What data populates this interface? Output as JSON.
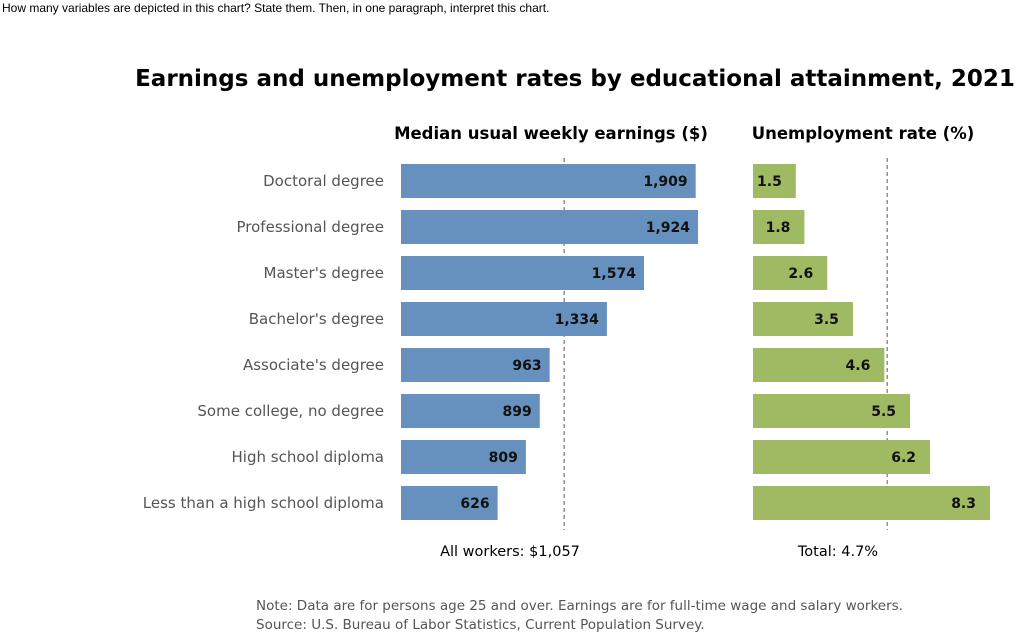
{
  "prompt_text": "How many variables are depicted in this chart? State them. Then, in one paragraph, interpret this chart.",
  "chart_data": {
    "type": "bar",
    "orientation": "horizontal",
    "title": "Earnings and unemployment rates by educational attainment, 2021",
    "categories": [
      "Doctoral degree",
      "Professional degree",
      "Master's degree",
      "Bachelor's degree",
      "Associate's degree",
      "Some college, no degree",
      "High school diploma",
      "Less than a high school diploma"
    ],
    "panels": [
      {
        "title": "Median usual weekly earnings ($)",
        "values": [
          1909,
          1924,
          1574,
          1334,
          963,
          899,
          809,
          626
        ],
        "value_labels": [
          "1,909",
          "1,924",
          "1,574",
          "1,334",
          "963",
          "899",
          "809",
          "626"
        ],
        "reference_value": 1057,
        "reference_label": "All workers: $1,057",
        "color": "#6690bd"
      },
      {
        "title": "Unemployment rate (%)",
        "values": [
          1.5,
          1.8,
          2.6,
          3.5,
          4.6,
          5.5,
          6.2,
          8.3
        ],
        "value_labels": [
          "1.5",
          "1.8",
          "2.6",
          "3.5",
          "4.6",
          "5.5",
          "6.2",
          "8.3"
        ],
        "reference_value": 4.7,
        "reference_label": "Total: 4.7%",
        "color": "#9fba63"
      }
    ],
    "notes": [
      "Note: Data are for persons age 25 and over. Earnings are for full-time wage and salary workers.",
      "Source: U.S. Bureau of Labor Statistics, Current Population Survey."
    ]
  }
}
